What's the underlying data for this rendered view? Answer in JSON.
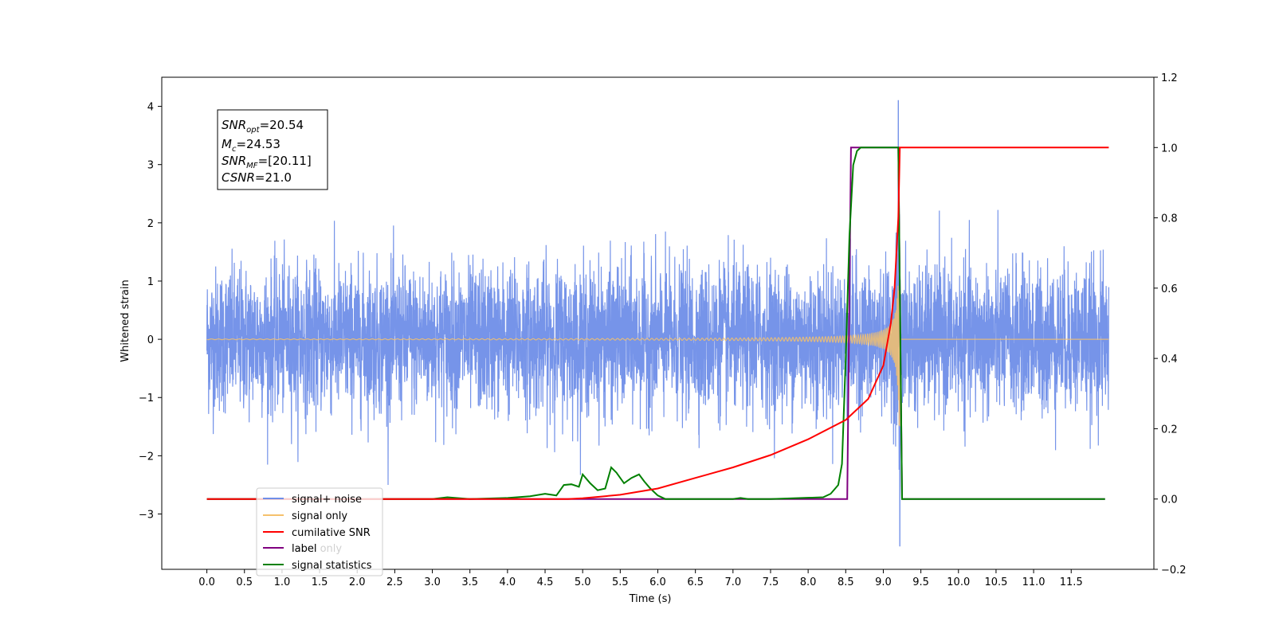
{
  "chart_data": {
    "type": "line",
    "xlabel": "Time (s)",
    "ylabel": "Whitened strain",
    "ylabel_right": "",
    "xlim": [
      -0.6,
      12.6
    ],
    "ylim": [
      -3.95,
      4.5
    ],
    "ylim_right": [
      -0.2,
      1.2
    ],
    "x_ticks": [
      "0.0",
      "0.5",
      "1.0",
      "1.5",
      "2.0",
      "2.5",
      "3.0",
      "3.5",
      "4.0",
      "4.5",
      "5.0",
      "5.5",
      "6.0",
      "6.5",
      "7.0",
      "7.5",
      "8.0",
      "8.5",
      "9.0",
      "9.5",
      "10.0",
      "10.5",
      "11.0",
      "11.5"
    ],
    "y_ticks": [
      "4",
      "3",
      "2",
      "1",
      "0",
      "−1",
      "−2",
      "−3"
    ],
    "y_ticks_right": [
      "1.2",
      "1.0",
      "0.8",
      "0.6",
      "0.4",
      "0.2",
      "0.0",
      "−0.2"
    ],
    "legend_position": "lower-left",
    "annotation": {
      "snr_opt": {
        "symbol": "SNR",
        "sub": "opt",
        "value": "=20.54"
      },
      "mc": {
        "symbol": "M",
        "sub": "c",
        "value": "=24.53"
      },
      "snr_mf": {
        "symbol": "SNR",
        "sub": "MF",
        "value": "=[20.11]"
      },
      "csnr": {
        "symbol": "CSNR",
        "sub": "",
        "value": "=21.0"
      }
    },
    "series": [
      {
        "name": "signal+ noise",
        "axis": "left",
        "color": "#6f8ee8",
        "description_values": {
          "x_range": [
            0.0,
            12.0
          ],
          "noise_amplitude": 1.0,
          "peak": {
            "x": 9.2,
            "y": 4.1
          },
          "trough": {
            "x": 9.22,
            "y": -3.55
          }
        }
      },
      {
        "name": "signal only",
        "axis": "left",
        "color": "#f5c16c",
        "description_values": {
          "x_range": [
            0.0,
            12.0
          ],
          "chirp_start": 5.5,
          "merger": 9.2,
          "max_amplitude": 1.6
        }
      },
      {
        "name": "cumilative SNR",
        "axis": "right",
        "color": "#ff0000",
        "x": [
          0.0,
          4.8,
          5.0,
          5.5,
          6.0,
          6.5,
          7.0,
          7.5,
          8.0,
          8.5,
          8.8,
          9.0,
          9.1,
          9.15,
          9.2,
          9.22,
          12.0
        ],
        "y": [
          0.0,
          0.0,
          0.002,
          0.012,
          0.03,
          0.06,
          0.09,
          0.125,
          0.17,
          0.225,
          0.285,
          0.38,
          0.5,
          0.6,
          0.8,
          1.0,
          1.0
        ]
      },
      {
        "name": "label",
        "axis": "right",
        "color": "#800080",
        "x": [
          0.0,
          8.52,
          8.57,
          9.2,
          9.25,
          11.95
        ],
        "y": [
          0.0,
          0.0,
          1.0,
          1.0,
          0.0,
          0.0
        ]
      },
      {
        "name": "signal statistics",
        "axis": "right",
        "color": "#008000",
        "x": [
          0.0,
          3.0,
          3.2,
          3.5,
          4.0,
          4.3,
          4.5,
          4.65,
          4.75,
          4.85,
          4.95,
          5.0,
          5.1,
          5.2,
          5.3,
          5.38,
          5.45,
          5.55,
          5.65,
          5.75,
          5.82,
          5.9,
          6.0,
          6.1,
          6.2,
          7.0,
          7.1,
          7.2,
          7.5,
          8.2,
          8.3,
          8.4,
          8.45,
          8.5,
          8.55,
          8.6,
          8.65,
          8.7,
          8.8,
          9.0,
          9.2,
          9.25,
          11.95
        ],
        "y": [
          0.0,
          0.0,
          0.005,
          0.0,
          0.003,
          0.008,
          0.015,
          0.01,
          0.04,
          0.042,
          0.035,
          0.07,
          0.045,
          0.025,
          0.03,
          0.09,
          0.075,
          0.045,
          0.06,
          0.07,
          0.05,
          0.03,
          0.01,
          0.0,
          0.0,
          0.0,
          0.003,
          0.0,
          0.0,
          0.005,
          0.015,
          0.04,
          0.1,
          0.4,
          0.75,
          0.95,
          0.99,
          1.0,
          1.0,
          1.0,
          1.0,
          0.0,
          0.0
        ]
      },
      {
        "name": "label only",
        "axis": "right",
        "color": "#ffffff",
        "legend_only": true
      }
    ]
  }
}
